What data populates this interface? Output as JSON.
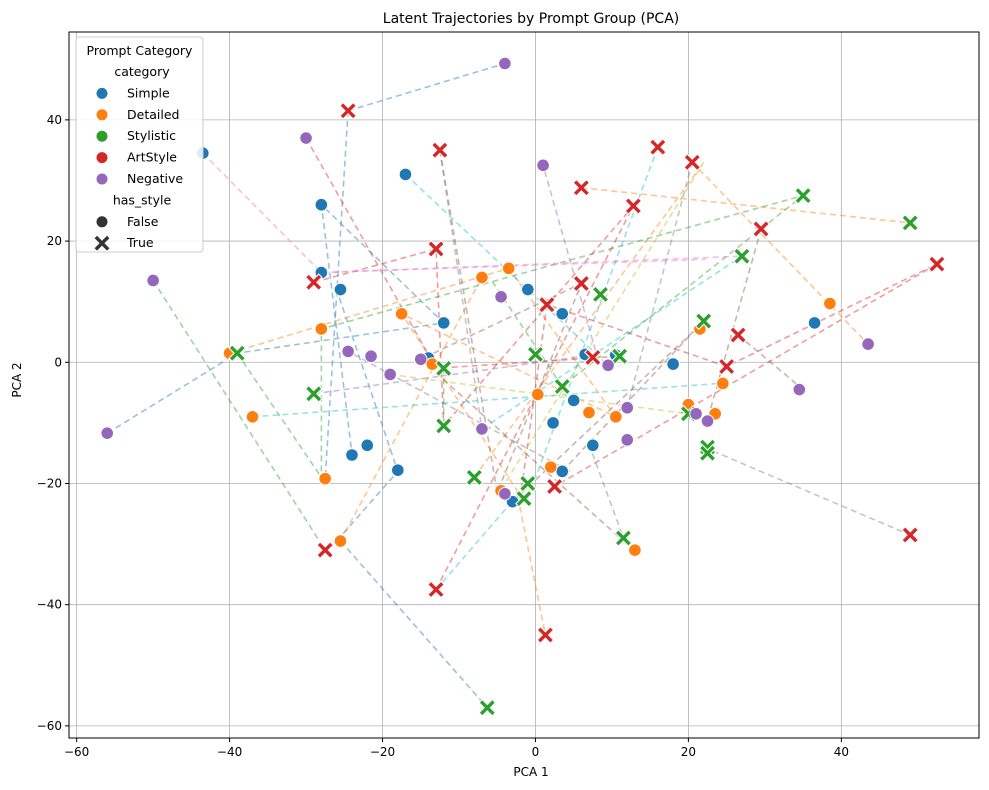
{
  "chart_data": {
    "type": "scatter",
    "title": "Latent Trajectories by Prompt Group (PCA)",
    "xlabel": "PCA 1",
    "ylabel": "PCA 2",
    "xlim": [
      -61,
      58
    ],
    "ylim": [
      -62,
      54.5
    ],
    "xticks": [
      -60,
      -40,
      -20,
      0,
      20,
      40
    ],
    "yticks": [
      -60,
      -40,
      -20,
      0,
      20,
      40
    ],
    "grid": true,
    "legend": {
      "placement": "top-left",
      "title": "Prompt Category",
      "hue_title": "category",
      "style_title": "has_style",
      "categories": [
        {
          "name": "Simple",
          "color": "#1f77b4"
        },
        {
          "name": "Detailed",
          "color": "#ff7f0e"
        },
        {
          "name": "Stylistic",
          "color": "#2ca02c"
        },
        {
          "name": "ArtStyle",
          "color": "#d62728"
        },
        {
          "name": "Negative",
          "color": "#9467bd"
        }
      ],
      "styles": [
        {
          "name": "False",
          "marker": "circle"
        },
        {
          "name": "True",
          "marker": "x"
        }
      ]
    },
    "line_colors": [
      "#1f77b4",
      "#ff7f0e",
      "#2ca02c",
      "#d62728",
      "#9467bd",
      "#8c564b",
      "#e377c2",
      "#7f7f7f",
      "#bcbd22",
      "#17becf"
    ],
    "trajectories": [
      {
        "color": 0,
        "points": [
          [
            -56,
            -11.7
          ],
          [
            -39,
            1.5
          ],
          [
            -12,
            6.5
          ],
          [
            -28,
            26
          ],
          [
            -24,
            -15
          ]
        ]
      },
      {
        "color": 0,
        "points": [
          [
            -26,
            -29.5
          ],
          [
            -18,
            -18
          ],
          [
            -26,
            12
          ]
        ]
      },
      {
        "color": 0,
        "points": [
          [
            -24.5,
            41.5
          ],
          [
            -4,
            49.3
          ]
        ]
      },
      {
        "color": 0,
        "points": [
          [
            -24.5,
            41.5
          ],
          [
            -27.5,
            -19.2
          ]
        ]
      },
      {
        "color": 0,
        "points": [
          [
            -25.5,
            -29.5
          ],
          [
            -6.3,
            -57
          ]
        ]
      },
      {
        "color": 1,
        "points": [
          [
            -40,
            1.5
          ],
          [
            -3.5,
            15.5
          ],
          [
            10.5,
            -9
          ],
          [
            -17.5,
            8
          ],
          [
            -2.5,
            -21
          ],
          [
            1.3,
            -45
          ]
        ]
      },
      {
        "color": 1,
        "points": [
          [
            -8,
            -19
          ],
          [
            22,
            33
          ]
        ]
      },
      {
        "color": 1,
        "points": [
          [
            6,
            28.8
          ],
          [
            49,
            23
          ]
        ]
      },
      {
        "color": 1,
        "points": [
          [
            -25.5,
            -29.5
          ],
          [
            -7,
            14
          ]
        ]
      },
      {
        "color": 1,
        "points": [
          [
            20.5,
            33
          ],
          [
            43.5,
            3
          ]
        ]
      },
      {
        "color": 2,
        "points": [
          [
            -50,
            13.5
          ],
          [
            -27.5,
            -31
          ]
        ]
      },
      {
        "color": 2,
        "points": [
          [
            -28,
            -18
          ],
          [
            -28,
            5.5
          ],
          [
            35,
            27.5
          ],
          [
            3.5,
            -4
          ],
          [
            -6,
            14
          ]
        ]
      },
      {
        "color": 2,
        "points": [
          [
            -39,
            1.5
          ],
          [
            -28,
            -19
          ]
        ]
      },
      {
        "color": 2,
        "points": [
          [
            -12,
            -1
          ],
          [
            -12,
            -10.5
          ]
        ]
      },
      {
        "color": 3,
        "points": [
          [
            -29,
            13.2
          ],
          [
            -13,
            18.7
          ],
          [
            -12,
            -10.5
          ]
        ]
      },
      {
        "color": 3,
        "points": [
          [
            -30,
            37
          ],
          [
            -13,
            -1
          ],
          [
            11,
            1
          ]
        ]
      },
      {
        "color": 3,
        "points": [
          [
            -2,
            -22.5
          ],
          [
            1.5,
            9.5
          ],
          [
            25,
            -0.7
          ],
          [
            52.5,
            16.2
          ],
          [
            2.5,
            -20.5
          ]
        ]
      },
      {
        "color": 3,
        "points": [
          [
            -13,
            -37.5
          ],
          [
            12.8,
            25.8
          ],
          [
            -12,
            -10.5
          ]
        ]
      },
      {
        "color": 4,
        "points": [
          [
            -29,
            -5.2
          ],
          [
            8,
            1.3
          ],
          [
            1,
            32.5
          ]
        ]
      },
      {
        "color": 5,
        "points": [
          [
            -12.5,
            35
          ],
          [
            -5,
            -21.5
          ],
          [
            6,
            13
          ],
          [
            -15,
            0.5
          ],
          [
            11.5,
            -29.5
          ]
        ]
      },
      {
        "color": 5,
        "points": [
          [
            29.5,
            22
          ],
          [
            22.5,
            -9.5
          ]
        ]
      },
      {
        "color": 5,
        "points": [
          [
            3.5,
            -18
          ],
          [
            21,
            5.5
          ],
          [
            -3,
            -23
          ]
        ]
      },
      {
        "color": 5,
        "points": [
          [
            26.5,
            4.5
          ],
          [
            35,
            -4.5
          ]
        ]
      },
      {
        "color": 6,
        "points": [
          [
            -43.5,
            34.5
          ],
          [
            -28,
            14.8
          ],
          [
            27,
            17.5
          ]
        ]
      },
      {
        "color": 6,
        "points": [
          [
            -28,
            14.8
          ],
          [
            22.3,
            17
          ]
        ]
      },
      {
        "color": 7,
        "points": [
          [
            -12.5,
            35
          ],
          [
            -7,
            -11
          ]
        ]
      },
      {
        "color": 7,
        "points": [
          [
            4.5,
            -18
          ],
          [
            -24.5,
            1.8
          ]
        ]
      },
      {
        "color": 7,
        "points": [
          [
            7,
            -13.5
          ],
          [
            11.5,
            -29
          ]
        ]
      },
      {
        "color": 7,
        "points": [
          [
            20.5,
            33
          ],
          [
            12,
            -7.5
          ]
        ]
      },
      {
        "color": 7,
        "points": [
          [
            22,
            -14
          ],
          [
            49,
            -28.5
          ]
        ]
      },
      {
        "color": 8,
        "points": [
          [
            -4.5,
            -21
          ],
          [
            22,
            33
          ]
        ]
      },
      {
        "color": 8,
        "points": [
          [
            -19,
            -2
          ],
          [
            20,
            -8.5
          ]
        ]
      },
      {
        "color": 9,
        "points": [
          [
            -37,
            -9
          ],
          [
            24,
            -3.5
          ]
        ]
      },
      {
        "color": 9,
        "points": [
          [
            -13,
            -37.5
          ],
          [
            -1,
            -20
          ]
        ]
      },
      {
        "color": 9,
        "points": [
          [
            -17,
            31
          ],
          [
            9.5,
            -0.5
          ]
        ]
      },
      {
        "color": 9,
        "points": [
          [
            16,
            35.5
          ],
          [
            -1,
            -22.5
          ]
        ]
      },
      {
        "color": 9,
        "points": [
          [
            -7,
            -11
          ],
          [
            27,
            17.5
          ]
        ]
      }
    ],
    "series": [
      {
        "name": "Simple",
        "marker": "circle",
        "points": [
          [
            -43.5,
            34.5
          ],
          [
            -17,
            31
          ],
          [
            -28,
            26
          ],
          [
            -28,
            14.8
          ],
          [
            -25.5,
            12
          ],
          [
            -12,
            6.5
          ],
          [
            -1,
            12
          ],
          [
            3.5,
            8
          ],
          [
            -14,
            0.7
          ],
          [
            6.5,
            1.3
          ],
          [
            10.5,
            1.2
          ],
          [
            18,
            -0.3
          ],
          [
            36.5,
            6.5
          ],
          [
            5,
            -6.3
          ],
          [
            2.3,
            -10
          ],
          [
            7.5,
            -13.7
          ],
          [
            -22,
            -13.7
          ],
          [
            -24,
            -15.3
          ],
          [
            -18,
            -17.8
          ],
          [
            3.5,
            -18
          ],
          [
            -3,
            -23
          ]
        ]
      },
      {
        "name": "Detailed",
        "marker": "circle",
        "points": [
          [
            -40,
            1.5
          ],
          [
            -28,
            5.5
          ],
          [
            -17.5,
            8
          ],
          [
            -7,
            14
          ],
          [
            -3.5,
            15.5
          ],
          [
            -13.5,
            -0.3
          ],
          [
            0.3,
            -5.3
          ],
          [
            -37,
            -9
          ],
          [
            7,
            -8.3
          ],
          [
            10.5,
            -9
          ],
          [
            20,
            -7
          ],
          [
            23.5,
            -8.5
          ],
          [
            24.5,
            -3.5
          ],
          [
            21.5,
            5.5
          ],
          [
            38.5,
            9.7
          ],
          [
            -27.5,
            -19.2
          ],
          [
            2,
            -17.3
          ],
          [
            -4.5,
            -21.2
          ],
          [
            -25.5,
            -29.5
          ],
          [
            13,
            -31
          ]
        ]
      },
      {
        "name": "Stylistic",
        "marker": "x",
        "points": [
          [
            35,
            27.5
          ],
          [
            49,
            23
          ],
          [
            27,
            17.5
          ],
          [
            8.5,
            11.2
          ],
          [
            22,
            6.8
          ],
          [
            -39,
            1.5
          ],
          [
            0,
            1.3
          ],
          [
            11,
            1
          ],
          [
            -12,
            -1
          ],
          [
            3.5,
            -4
          ],
          [
            -29,
            -5.2
          ],
          [
            -12,
            -10.5
          ],
          [
            20,
            -8.5
          ],
          [
            22.5,
            -14
          ],
          [
            22.5,
            -15
          ],
          [
            -8,
            -19
          ],
          [
            -1,
            -20
          ],
          [
            -1.5,
            -22.5
          ],
          [
            11.5,
            -29
          ],
          [
            -6.3,
            -57
          ]
        ]
      },
      {
        "name": "ArtStyle",
        "marker": "x",
        "points": [
          [
            -24.5,
            41.5
          ],
          [
            -12.5,
            35
          ],
          [
            16,
            35.5
          ],
          [
            20.5,
            33
          ],
          [
            6,
            28.8
          ],
          [
            12.8,
            25.8
          ],
          [
            29.5,
            22
          ],
          [
            -13,
            18.7
          ],
          [
            -29,
            13.2
          ],
          [
            6,
            13
          ],
          [
            1.5,
            9.5
          ],
          [
            26.5,
            4.5
          ],
          [
            7.5,
            0.8
          ],
          [
            25,
            -0.7
          ],
          [
            52.5,
            16.2
          ],
          [
            2.5,
            -20.5
          ],
          [
            -27.5,
            -31
          ],
          [
            49,
            -28.5
          ],
          [
            -13,
            -37.5
          ],
          [
            1.3,
            -45
          ]
        ]
      },
      {
        "name": "Negative",
        "marker": "circle",
        "points": [
          [
            -4,
            49.3
          ],
          [
            -30,
            37
          ],
          [
            1,
            32.5
          ],
          [
            -50,
            13.5
          ],
          [
            -4.5,
            10.8
          ],
          [
            -24.5,
            1.8
          ],
          [
            -21.5,
            1
          ],
          [
            -15,
            0.5
          ],
          [
            -19,
            -2
          ],
          [
            9.5,
            -0.5
          ],
          [
            43.5,
            3
          ],
          [
            34.5,
            -4.5
          ],
          [
            12,
            -7.5
          ],
          [
            -7,
            -11
          ],
          [
            12,
            -12.8
          ],
          [
            21,
            -8.5
          ],
          [
            22.5,
            -9.7
          ],
          [
            -56,
            -11.7
          ],
          [
            -4,
            -21.7
          ]
        ]
      }
    ]
  }
}
